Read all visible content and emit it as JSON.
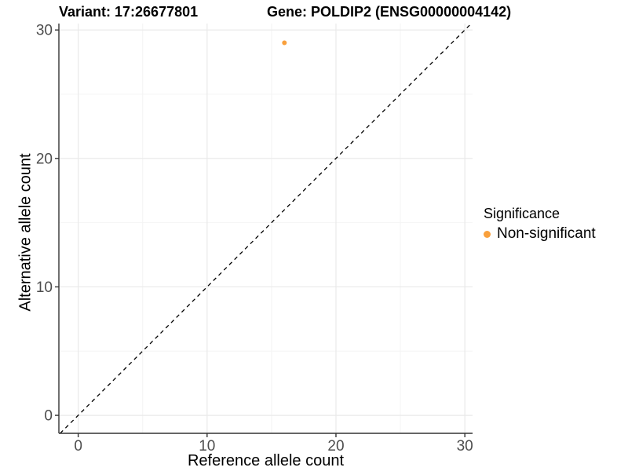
{
  "chart_data": {
    "type": "scatter",
    "titles": {
      "left": "Variant: 17:26677801",
      "right": "Gene: POLDIP2 (ENSG00000004142)"
    },
    "xlabel": "Reference allele count",
    "ylabel": "Alternative allele count",
    "xlim": [
      -1.5,
      30.6
    ],
    "ylim": [
      -1.4,
      30.5
    ],
    "x_ticks": [
      0,
      10,
      20,
      30
    ],
    "y_ticks": [
      0,
      10,
      20,
      30
    ],
    "x_minor_ticks": [
      5,
      15,
      25
    ],
    "y_minor_ticks": [
      5,
      15,
      25
    ],
    "grid": "major and minor horizontal+vertical, very light gray, white panel",
    "legend_position": "right",
    "legend": {
      "title": "Significance"
    },
    "series": [
      {
        "name": "Non-significant",
        "color": "#F9A03C",
        "x": [
          16
        ],
        "y": [
          29
        ]
      }
    ],
    "abline": {
      "slope": 1,
      "intercept": 0,
      "style": "dashed",
      "color": "#000000"
    }
  },
  "colors": {
    "axis_line": "#333333",
    "tick_label": "#4D4D4D",
    "grid_major": "#E9E9E9",
    "grid_minor": "#F4F4F4",
    "background": "#FFFFFF"
  }
}
